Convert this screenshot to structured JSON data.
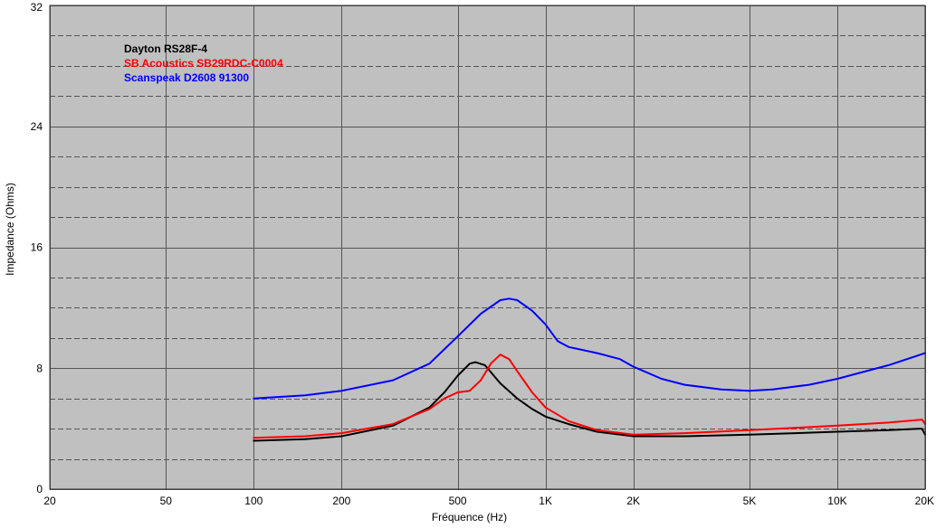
{
  "chart_data": {
    "type": "line",
    "xlabel": "Fréquence (Hz)",
    "ylabel": "Impedance (Ohms)",
    "x_scale": "log",
    "xlim": [
      20,
      20000
    ],
    "ylim": [
      0,
      32
    ],
    "grid": true,
    "legend_position": "top-left",
    "x_ticks": [
      {
        "value": 20,
        "label": "20"
      },
      {
        "value": 50,
        "label": "50"
      },
      {
        "value": 100,
        "label": "100"
      },
      {
        "value": 200,
        "label": "200"
      },
      {
        "value": 500,
        "label": "500"
      },
      {
        "value": 1000,
        "label": "1K"
      },
      {
        "value": 2000,
        "label": "2K"
      },
      {
        "value": 5000,
        "label": "5K"
      },
      {
        "value": 10000,
        "label": "10K"
      },
      {
        "value": 20000,
        "label": "20K"
      }
    ],
    "y_ticks": [
      {
        "value": 0,
        "label": "0"
      },
      {
        "value": 8,
        "label": "8"
      },
      {
        "value": 16,
        "label": "16"
      },
      {
        "value": 24,
        "label": "24"
      },
      {
        "value": 32,
        "label": "32"
      }
    ],
    "colors": {
      "background": "#c0c0c0",
      "grid_major": "#555555",
      "grid_minor": "#555555"
    },
    "series": [
      {
        "name": "Dayton RS28F-4",
        "color": "#000000",
        "points": [
          [
            100,
            3.2
          ],
          [
            150,
            3.3
          ],
          [
            200,
            3.5
          ],
          [
            300,
            4.2
          ],
          [
            400,
            5.4
          ],
          [
            450,
            6.4
          ],
          [
            500,
            7.5
          ],
          [
            550,
            8.3
          ],
          [
            575,
            8.4
          ],
          [
            620,
            8.2
          ],
          [
            700,
            7.0
          ],
          [
            800,
            6.0
          ],
          [
            900,
            5.3
          ],
          [
            1000,
            4.8
          ],
          [
            1200,
            4.3
          ],
          [
            1500,
            3.8
          ],
          [
            2000,
            3.5
          ],
          [
            3000,
            3.5
          ],
          [
            5000,
            3.6
          ],
          [
            10000,
            3.8
          ],
          [
            15000,
            3.9
          ],
          [
            19500,
            4.0
          ],
          [
            20000,
            3.6
          ]
        ]
      },
      {
        "name": "SB Acoustics SB29RDC-C0004",
        "color": "#ff0000",
        "points": [
          [
            100,
            3.4
          ],
          [
            150,
            3.5
          ],
          [
            200,
            3.7
          ],
          [
            300,
            4.3
          ],
          [
            400,
            5.3
          ],
          [
            450,
            6.0
          ],
          [
            500,
            6.4
          ],
          [
            550,
            6.5
          ],
          [
            600,
            7.2
          ],
          [
            650,
            8.3
          ],
          [
            700,
            8.9
          ],
          [
            750,
            8.6
          ],
          [
            800,
            7.8
          ],
          [
            900,
            6.4
          ],
          [
            1000,
            5.4
          ],
          [
            1200,
            4.5
          ],
          [
            1500,
            3.9
          ],
          [
            2000,
            3.6
          ],
          [
            3000,
            3.7
          ],
          [
            5000,
            3.9
          ],
          [
            10000,
            4.2
          ],
          [
            15000,
            4.4
          ],
          [
            19500,
            4.6
          ],
          [
            20000,
            4.3
          ]
        ]
      },
      {
        "name": "Scanspeak D2608 91300",
        "color": "#0000ff",
        "points": [
          [
            100,
            6.0
          ],
          [
            150,
            6.2
          ],
          [
            200,
            6.5
          ],
          [
            300,
            7.2
          ],
          [
            400,
            8.3
          ],
          [
            500,
            10.1
          ],
          [
            600,
            11.6
          ],
          [
            700,
            12.5
          ],
          [
            750,
            12.6
          ],
          [
            800,
            12.5
          ],
          [
            900,
            11.8
          ],
          [
            1000,
            10.9
          ],
          [
            1100,
            9.8
          ],
          [
            1200,
            9.4
          ],
          [
            1500,
            9.0
          ],
          [
            1800,
            8.6
          ],
          [
            2000,
            8.1
          ],
          [
            2500,
            7.3
          ],
          [
            3000,
            6.9
          ],
          [
            4000,
            6.6
          ],
          [
            5000,
            6.5
          ],
          [
            6000,
            6.6
          ],
          [
            8000,
            6.9
          ],
          [
            10000,
            7.3
          ],
          [
            15000,
            8.2
          ],
          [
            20000,
            9.0
          ]
        ]
      }
    ]
  }
}
